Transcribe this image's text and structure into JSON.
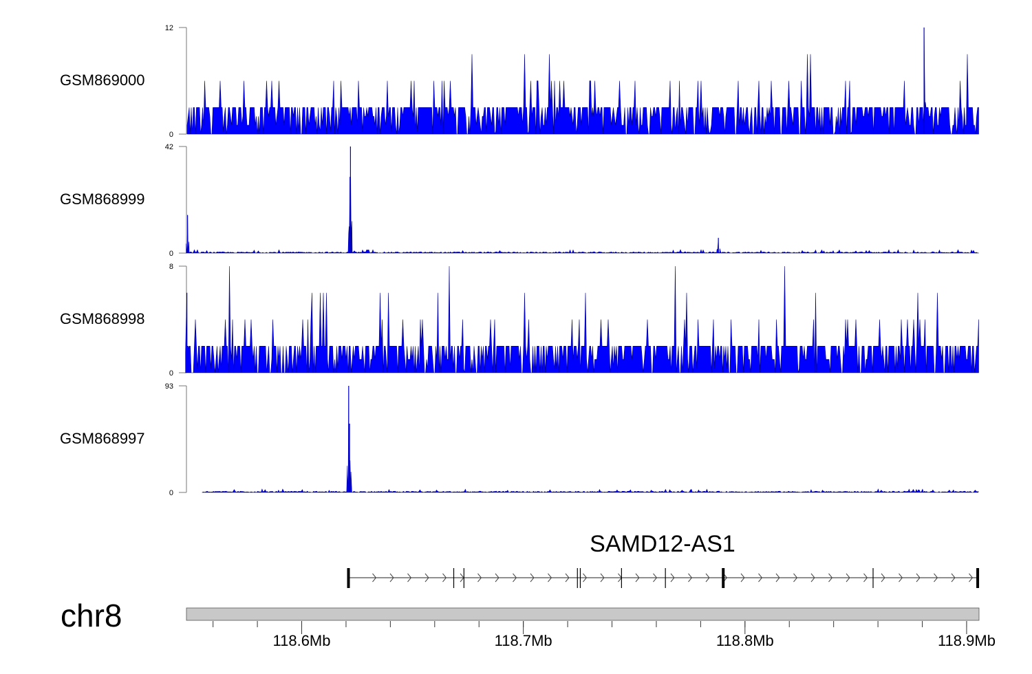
{
  "chart_data": {
    "type": "area",
    "title": "",
    "region": {
      "chromosome": "chr8",
      "start_mb": 118.548,
      "end_mb": 118.9056
    },
    "x_axis": {
      "ticks_mb": [
        118.6,
        118.7,
        118.8,
        118.9
      ],
      "tick_labels": [
        "118.6Mb",
        "118.7Mb",
        "118.8Mb",
        "118.9Mb"
      ],
      "minor_step_mb": 0.02
    },
    "color": "#0000FF",
    "tracks": [
      {
        "name": "GSM869000",
        "ylim": [
          0,
          12
        ],
        "y_tick_labels": [
          "12",
          "0"
        ],
        "baseline_max": 3,
        "spike_levels": [
          6,
          9
        ],
        "peaks": [
          {
            "pos_mb": 118.8808,
            "value": 12
          }
        ]
      },
      {
        "name": "GSM868999",
        "ylim": [
          0,
          42
        ],
        "y_tick_labels": [
          "42",
          "0"
        ],
        "baseline_max": 1,
        "peaks": [
          {
            "pos_mb": 118.5485,
            "value": 15
          },
          {
            "pos_mb": 118.6218,
            "value": 30
          },
          {
            "pos_mb": 118.622,
            "value": 42
          },
          {
            "pos_mb": 118.788,
            "value": 6
          }
        ]
      },
      {
        "name": "GSM868998",
        "ylim": [
          0,
          8
        ],
        "y_tick_labels": [
          "8",
          "0"
        ],
        "baseline_max": 2,
        "spike_levels": [
          4,
          6,
          8
        ],
        "peaks": [
          {
            "pos_mb": 118.5482,
            "value": 6
          }
        ]
      },
      {
        "name": "GSM868997",
        "ylim": [
          0,
          93
        ],
        "y_tick_labels": [
          "93",
          "0"
        ],
        "baseline_max": 1,
        "start_mb": 118.5551,
        "peaks": [
          {
            "pos_mb": 118.6212,
            "value": 93
          },
          {
            "pos_mb": 118.6216,
            "value": 60
          }
        ]
      }
    ],
    "gene": {
      "name": "SAMD12-AS1",
      "strand": "+",
      "start_mb": 118.6211,
      "end_mb": 118.905,
      "exons_mb": [
        118.6211,
        118.6686,
        118.6732,
        118.7244,
        118.7257,
        118.7443,
        118.7641,
        118.7902,
        118.8578,
        118.905
      ],
      "thick_exons_mb": [
        118.6211,
        118.7902,
        118.905
      ]
    },
    "ideogram": {
      "label": "chr8"
    }
  }
}
